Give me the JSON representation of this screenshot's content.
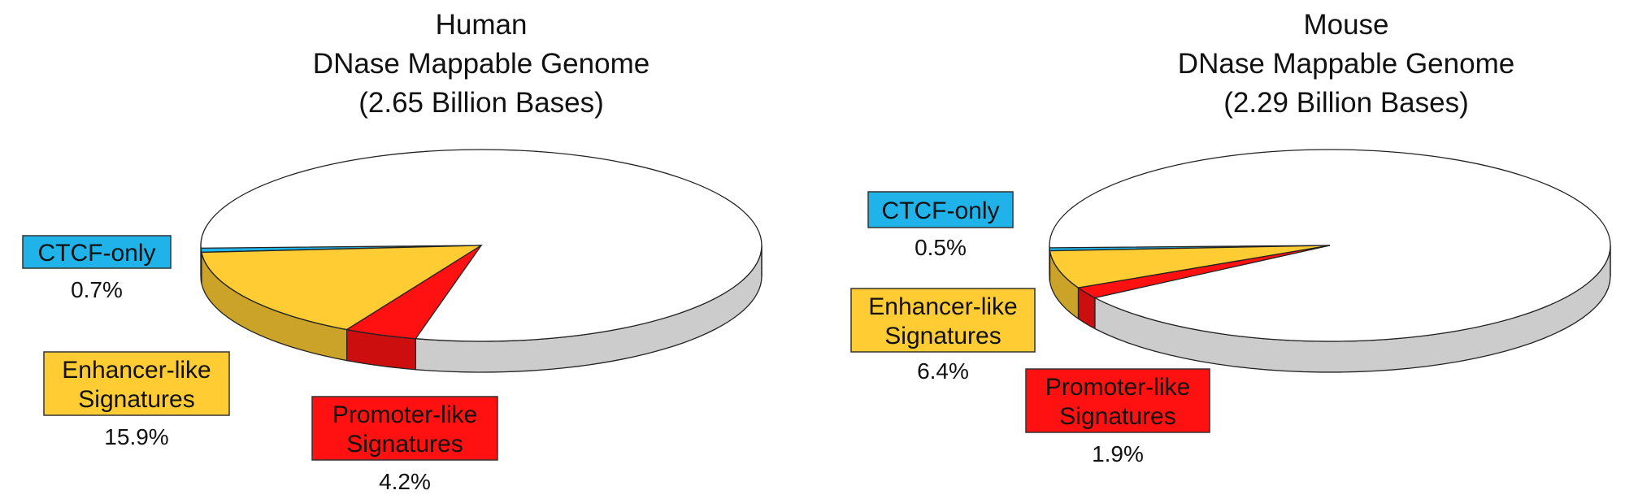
{
  "chart_data": [
    {
      "type": "pie",
      "title": [
        "Human",
        "DNase Mappable Genome",
        "(2.65 Billion Bases)"
      ],
      "slices": [
        {
          "label": [
            "CTCF-only"
          ],
          "value": 0.7,
          "value_label": "0.7%",
          "color": "#1FB3EA"
        },
        {
          "label": [
            "Enhancer-like",
            "Signatures"
          ],
          "value": 15.9,
          "value_label": "15.9%",
          "color": "#FFCC33"
        },
        {
          "label": [
            "Promoter-like",
            "Signatures"
          ],
          "value": 4.2,
          "value_label": "4.2%",
          "color": "#FF1111"
        }
      ],
      "background_color": "#FFFFFF"
    },
    {
      "type": "pie",
      "title": [
        "Mouse",
        "DNase Mappable Genome",
        "(2.29 Billion Bases)"
      ],
      "slices": [
        {
          "label": [
            "CTCF-only"
          ],
          "value": 0.5,
          "value_label": "0.5%",
          "color": "#1FB3EA"
        },
        {
          "label": [
            "Enhancer-like",
            "Signatures"
          ],
          "value": 6.4,
          "value_label": "6.4%",
          "color": "#FFCC33"
        },
        {
          "label": [
            "Promoter-like",
            "Signatures"
          ],
          "value": 1.9,
          "value_label": "1.9%",
          "color": "#FF1111"
        }
      ],
      "background_color": "#FFFFFF"
    }
  ]
}
